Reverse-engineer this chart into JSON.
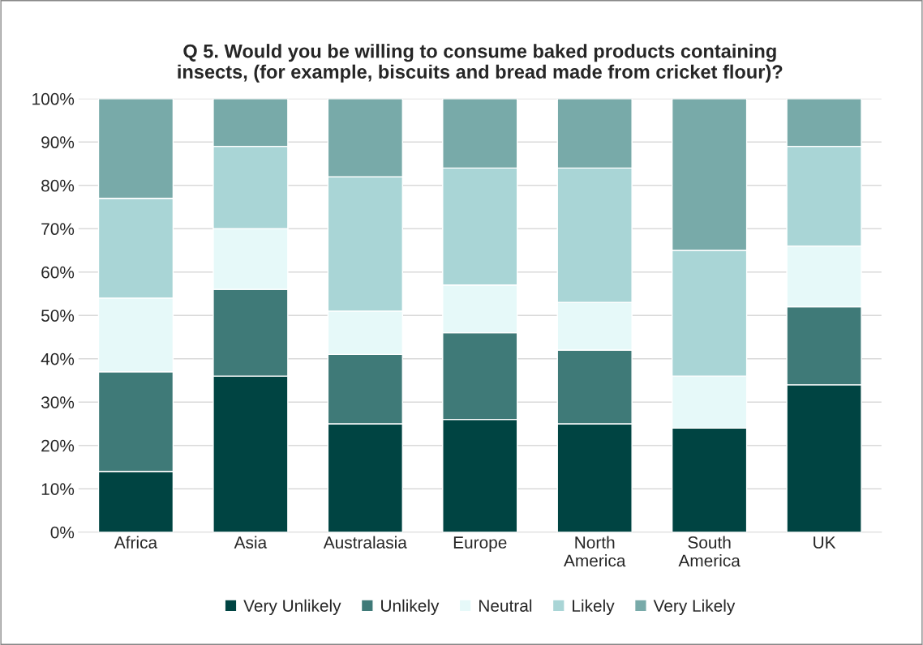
{
  "chart_data": {
    "type": "bar",
    "title": "Q 5. Would you be willing to consume baked products containing\ninsects, (for example, biscuits and bread made from cricket flour)?",
    "categories": [
      "Africa",
      "Asia",
      "Australasia",
      "Europe",
      "North\nAmerica",
      "South\nAmerica",
      "UK"
    ],
    "stacked": true,
    "series": [
      {
        "name": "Very Unlikely",
        "color": "#004442",
        "values": [
          14,
          36,
          25,
          26,
          25,
          24,
          34
        ]
      },
      {
        "name": "Unlikely",
        "color": "#3f7a78",
        "values": [
          23,
          20,
          16,
          20,
          17,
          0,
          18
        ]
      },
      {
        "name": "Neutral",
        "color": "#e6f9f9",
        "values": [
          17,
          14,
          10,
          11,
          11,
          12,
          14
        ]
      },
      {
        "name": "Likely",
        "color": "#a9d5d6",
        "values": [
          23,
          19,
          31,
          27,
          31,
          29,
          23
        ]
      },
      {
        "name": "Very Likely",
        "color": "#78aaa9",
        "values": [
          23,
          11,
          18,
          16,
          16,
          35,
          11
        ]
      }
    ],
    "ylim": [
      0,
      100
    ],
    "yticks": [
      {
        "value": 0,
        "label": "0%"
      },
      {
        "value": 10,
        "label": "10%"
      },
      {
        "value": 20,
        "label": "20%"
      },
      {
        "value": 30,
        "label": "30%"
      },
      {
        "value": 40,
        "label": "40%"
      },
      {
        "value": 50,
        "label": "50%"
      },
      {
        "value": 60,
        "label": "60%"
      },
      {
        "value": 70,
        "label": "70%"
      },
      {
        "value": 80,
        "label": "80%"
      },
      {
        "value": 90,
        "label": "90%"
      },
      {
        "value": 100,
        "label": "100%"
      }
    ],
    "grid": "y",
    "legend": "bottom"
  }
}
